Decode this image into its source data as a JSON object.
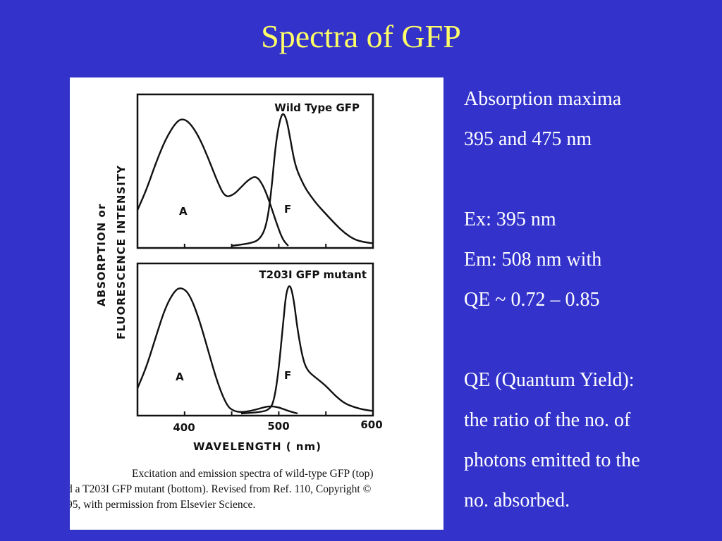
{
  "slide": {
    "title": "Spectra of GFP"
  },
  "colors": {
    "background": "#3333cc",
    "title": "#ffff66",
    "body_text": "#ffffff",
    "figure_bg": "#ffffff"
  },
  "figure": {
    "y_axis_label_line1": "ABSORPTION or",
    "y_axis_label_line2": "FLUORESCENCE  INTENSITY",
    "x_axis_label": "WAVELENGTH ( nm)",
    "caption_line1": "Excitation and emission spectra of wild-type GFP (top)",
    "caption_line2": "d a T203I GFP mutant (bottom). Revised from Ref. 110, Copyright ©",
    "caption_line3": "95, with permission from Elsevier Science."
  },
  "chart_data": [
    {
      "type": "line",
      "title": "Wild Type GFP",
      "xlim": [
        350,
        600
      ],
      "ylim": [
        0,
        1
      ],
      "x_ticks": [
        400,
        450,
        500,
        550,
        600
      ],
      "series": [
        {
          "name": "A",
          "x": [
            350,
            360,
            370,
            380,
            390,
            397,
            405,
            415,
            425,
            435,
            443,
            452,
            460,
            468,
            476,
            483,
            490,
            497,
            504,
            510
          ],
          "y": [
            0.28,
            0.45,
            0.66,
            0.84,
            0.96,
            1.0,
            0.97,
            0.86,
            0.69,
            0.5,
            0.38,
            0.4,
            0.46,
            0.52,
            0.55,
            0.48,
            0.35,
            0.19,
            0.05,
            0.0
          ]
        },
        {
          "name": "F",
          "x": [
            450,
            470,
            480,
            487,
            492,
            496,
            500,
            504,
            508,
            512,
            516,
            520,
            525,
            530,
            540,
            550,
            560,
            570,
            580,
            590,
            600
          ],
          "y": [
            0.0,
            0.02,
            0.05,
            0.16,
            0.42,
            0.75,
            0.95,
            1.05,
            1.0,
            0.85,
            0.68,
            0.58,
            0.5,
            0.43,
            0.33,
            0.25,
            0.17,
            0.1,
            0.05,
            0.03,
            0.02
          ]
        }
      ],
      "labels": [
        "A",
        "F"
      ]
    },
    {
      "type": "line",
      "title": "T203I GFP mutant",
      "xlim": [
        350,
        600
      ],
      "ylim": [
        0,
        1
      ],
      "x_ticks": [
        400,
        450,
        500,
        550,
        600
      ],
      "x_tick_labels": [
        "400",
        "500",
        "600"
      ],
      "series": [
        {
          "name": "A",
          "x": [
            350,
            360,
            370,
            380,
            390,
            397,
            405,
            415,
            425,
            435,
            445,
            452,
            460,
            470,
            480,
            490,
            500,
            510,
            520
          ],
          "y": [
            0.2,
            0.38,
            0.62,
            0.85,
            0.98,
            1.0,
            0.95,
            0.76,
            0.5,
            0.24,
            0.06,
            0.02,
            0.01,
            0.02,
            0.04,
            0.06,
            0.05,
            0.02,
            0.0
          ]
        },
        {
          "name": "F",
          "x": [
            460,
            480,
            490,
            495,
            500,
            505,
            508,
            512,
            516,
            520,
            525,
            530,
            540,
            550,
            560,
            570,
            580,
            590,
            600
          ],
          "y": [
            0.0,
            0.01,
            0.03,
            0.1,
            0.35,
            0.75,
            0.97,
            1.03,
            0.9,
            0.66,
            0.45,
            0.34,
            0.28,
            0.22,
            0.14,
            0.08,
            0.05,
            0.03,
            0.02
          ]
        }
      ],
      "labels": [
        "A",
        "F"
      ]
    }
  ],
  "notes": {
    "line1": "Absorption maxima",
    "line2": "395 and 475 nm",
    "line3": "",
    "line4": "Ex: 395 nm",
    "line5": "Em: 508 nm with",
    "line6": "QE ~ 0.72 – 0.85",
    "line7": "",
    "line8": "QE (Quantum Yield):",
    "line9": "the ratio of the no. of",
    "line10": "photons emitted to the",
    "line11": "no. absorbed."
  }
}
